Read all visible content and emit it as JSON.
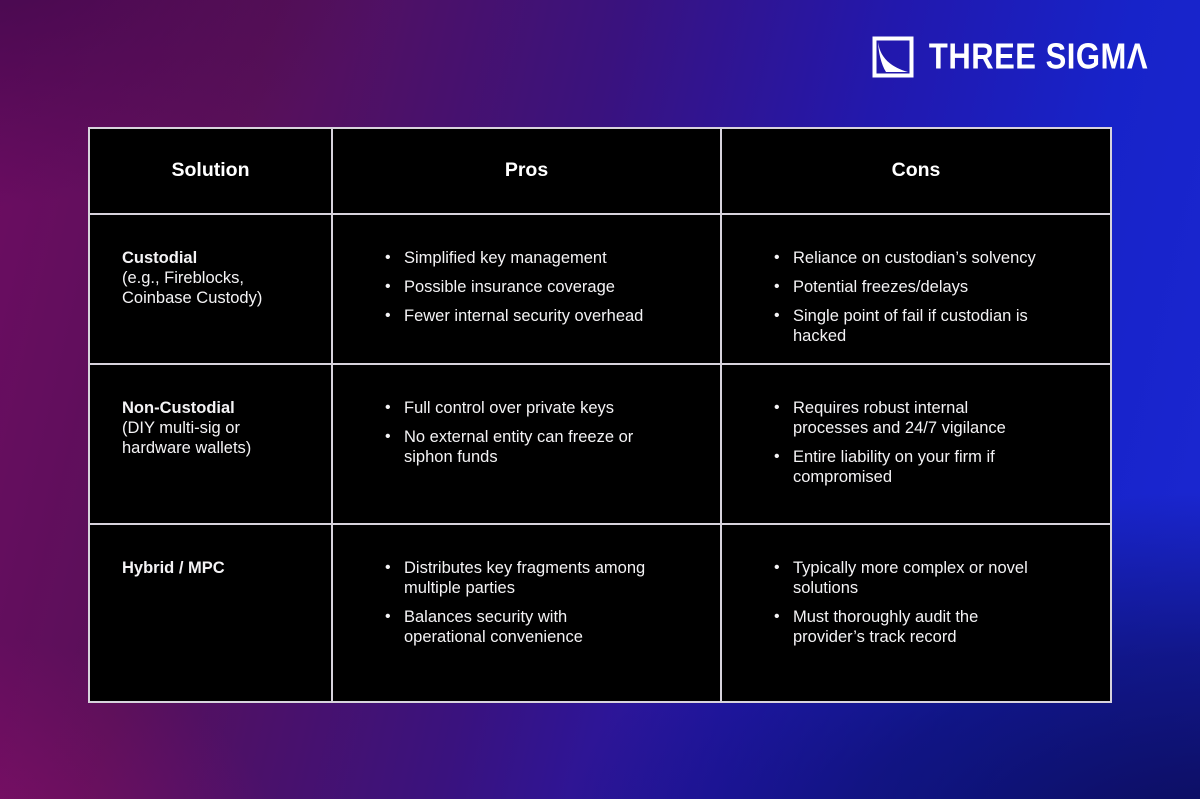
{
  "brand": {
    "name": "THREE SIGMA",
    "wordmark_main": "THREE SIGM",
    "wordmark_last_glyph": "Λ",
    "icon": "three-sigma-square-curve-icon",
    "color": "#ffffff"
  },
  "background": {
    "top_left": "#4a0a52",
    "bottom_left": "#7a0d68",
    "top_right": "#1b25d0",
    "bottom_right": "#0e0e60"
  },
  "table": {
    "border_color": "#d7d3dc",
    "cell_background": "#000000",
    "text_color": "#f4f3f5",
    "headers": [
      "Solution",
      "Pros",
      "Cons"
    ],
    "rows": [
      {
        "solution_title": "Custodial",
        "solution_sub": "(e.g., Fireblocks,\nCoinbase Custody)",
        "pros": [
          "Simplified key management",
          "Possible insurance coverage",
          "Fewer internal security overhead"
        ],
        "cons": [
          "Reliance on custodian’s solvency",
          "Potential freezes/delays",
          "Single point of fail if custodian is\nhacked"
        ]
      },
      {
        "solution_title": "Non-Custodial",
        "solution_sub": "(DIY multi-sig or\nhardware wallets)",
        "pros": [
          "Full control over private keys",
          "No external entity can freeze or\nsiphon funds"
        ],
        "cons": [
          "Requires robust internal\nprocesses and 24/7 vigilance",
          "Entire liability on your firm if\ncompromised"
        ]
      },
      {
        "solution_title": "Hybrid / MPC",
        "solution_sub": "",
        "pros": [
          "Distributes key fragments among\nmultiple parties",
          "Balances security with\noperational convenience"
        ],
        "cons": [
          "Typically more complex or novel\nsolutions",
          "Must thoroughly audit the\nprovider’s track record"
        ]
      }
    ]
  }
}
